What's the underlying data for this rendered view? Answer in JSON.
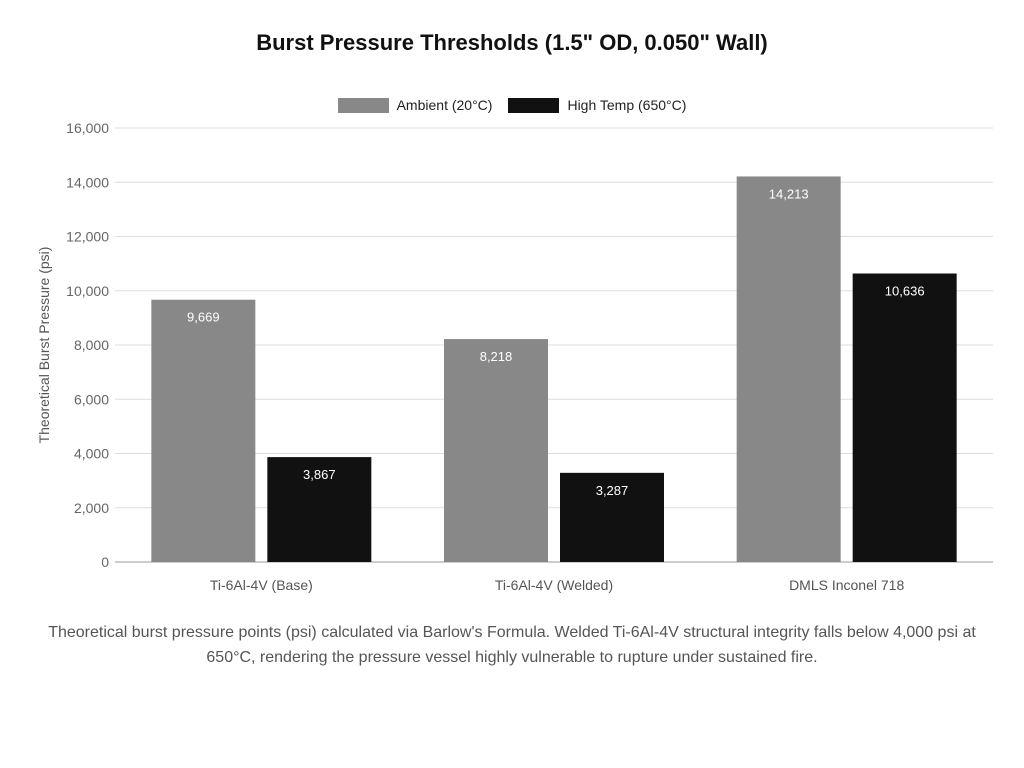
{
  "chart_data": {
    "type": "bar",
    "title": "Burst Pressure Thresholds (1.5\" OD, 0.050\" Wall)",
    "categories": [
      "Ti-6Al-4V (Base)",
      "Ti-6Al-4V (Welded)",
      "DMLS Inconel 718"
    ],
    "series": [
      {
        "name": "Ambient (20°C)",
        "color": "#888888",
        "values": [
          9669,
          8218,
          14213
        ],
        "labels": [
          "9,669",
          "8,218",
          "14,213"
        ]
      },
      {
        "name": "High Temp (650°C)",
        "color": "#111111",
        "values": [
          3867,
          3287,
          10636
        ],
        "labels": [
          "3,867",
          "3,287",
          "10,636"
        ]
      }
    ],
    "xlabel": "",
    "ylabel": "Theoretical Burst Pressure (psi)",
    "ylim": [
      0,
      16000
    ],
    "yticks": [
      0,
      2000,
      4000,
      6000,
      8000,
      10000,
      12000,
      14000,
      16000
    ],
    "ytick_labels": [
      "0",
      "2,000",
      "4,000",
      "6,000",
      "8,000",
      "10,000",
      "12,000",
      "14,000",
      "16,000"
    ],
    "grid": true,
    "legend_position": "top-center"
  },
  "caption": "Theoretical burst pressure points (psi) calculated via Barlow's Formula. Welded Ti-6Al-4V structural integrity falls below 4,000 psi at 650°C, rendering the pressure vessel highly vulnerable to rupture under sustained fire."
}
